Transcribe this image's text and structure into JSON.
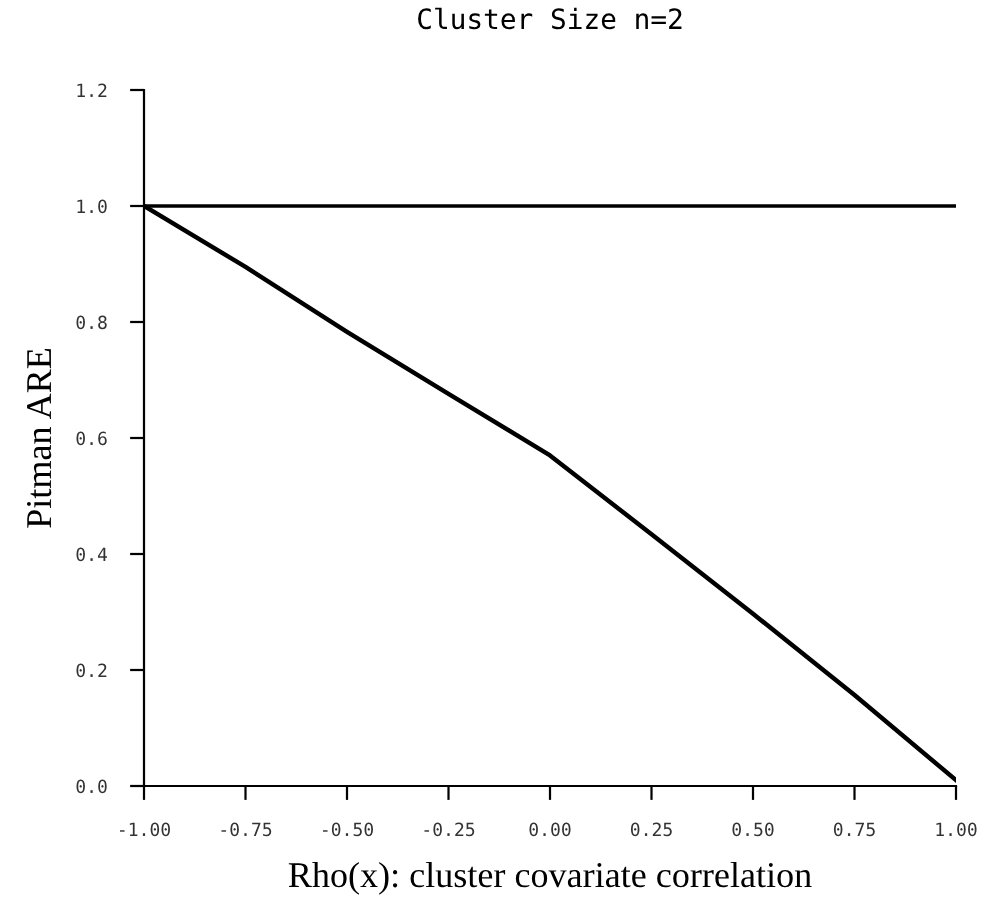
{
  "chart_data": {
    "type": "line",
    "title": "Cluster Size n=2",
    "xlabel": "Rho(x): cluster covariate correlation",
    "ylabel": "Pitman ARE",
    "x": [
      -1.0,
      -0.75,
      -0.5,
      -0.25,
      0.0,
      0.25,
      0.5,
      0.75,
      1.0
    ],
    "series": [
      {
        "color": "#000000",
        "values": [
          1.0,
          0.895,
          0.783,
          0.676,
          0.57,
          0.434,
          0.297,
          0.157,
          0.01
        ]
      }
    ],
    "xlim": [
      -1.0,
      1.0
    ],
    "ylim": [
      0.0,
      1.2
    ],
    "xticks": [
      {
        "value": -1.0,
        "label": "-1.00"
      },
      {
        "value": -0.75,
        "label": "-0.75"
      },
      {
        "value": -0.5,
        "label": "-0.50"
      },
      {
        "value": -0.25,
        "label": "-0.25"
      },
      {
        "value": 0.0,
        "label": "0.00"
      },
      {
        "value": 0.25,
        "label": "0.25"
      },
      {
        "value": 0.5,
        "label": "0.50"
      },
      {
        "value": 0.75,
        "label": "0.75"
      },
      {
        "value": 1.0,
        "label": "1.00"
      }
    ],
    "yticks": [
      {
        "value": 0.0,
        "label": "0.0"
      },
      {
        "value": 0.2,
        "label": "0.2"
      },
      {
        "value": 0.4,
        "label": "0.4"
      },
      {
        "value": 0.6,
        "label": "0.6"
      },
      {
        "value": 0.8,
        "label": "0.8"
      },
      {
        "value": 1.0,
        "label": "1.0"
      },
      {
        "value": 1.2,
        "label": "1.2"
      }
    ],
    "ref_lines": [
      {
        "axis": "y",
        "value": 1.0,
        "color": "#000000"
      }
    ],
    "grid": false,
    "legend": false
  }
}
